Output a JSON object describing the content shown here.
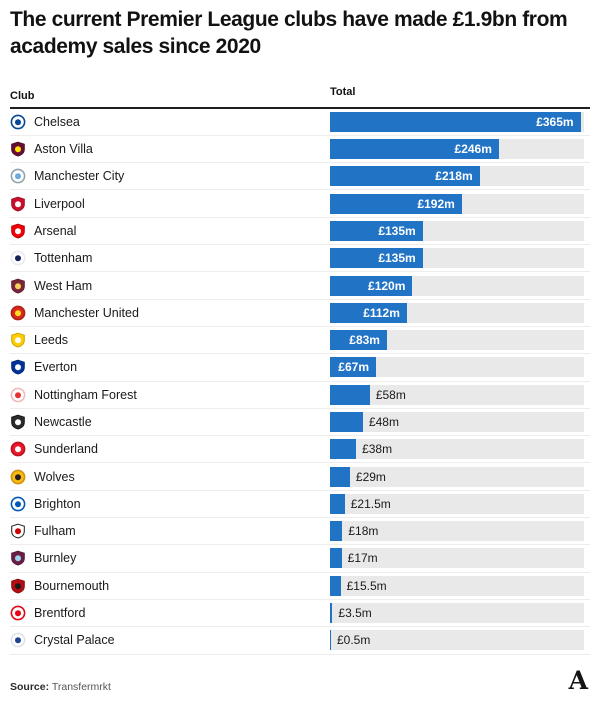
{
  "title": "The current Premier League clubs have made £1.9bn from academy sales since 2020",
  "columns": {
    "club": "Club",
    "total": "Total"
  },
  "source": {
    "label": "Source:",
    "value": "Transfermrkt"
  },
  "logo_letter": "A",
  "colors": {
    "bar": "#2173c6",
    "track": "#e9e9ea",
    "header_rule": "#1f1f1f",
    "row_separator": "#ededed",
    "value_inside": "#ffffff",
    "value_outside": "#1a1a1a"
  },
  "chart_data": {
    "type": "bar",
    "orientation": "horizontal",
    "title": "The current Premier League clubs have made £1.9bn from academy sales since 2020",
    "categories": [
      "Chelsea",
      "Aston Villa",
      "Manchester City",
      "Liverpool",
      "Arsenal",
      "Tottenham",
      "West Ham",
      "Manchester United",
      "Leeds",
      "Everton",
      "Nottingham Forest",
      "Newcastle",
      "Sunderland",
      "Wolves",
      "Brighton",
      "Fulham",
      "Burnley",
      "Bournemouth",
      "Brentford",
      "Crystal Palace"
    ],
    "values": [
      365,
      246,
      218,
      192,
      135,
      135,
      120,
      112,
      83,
      67,
      58,
      48,
      38,
      29,
      21.5,
      18,
      17,
      15.5,
      3.5,
      0.5
    ],
    "value_labels": [
      "£365m",
      "£246m",
      "£218m",
      "£192m",
      "£135m",
      "£135m",
      "£120m",
      "£112m",
      "£83m",
      "£67m",
      "£58m",
      "£48m",
      "£38m",
      "£29m",
      "£21.5m",
      "£18m",
      "£17m",
      "£15.5m",
      "£3.5m",
      "£0.5m"
    ],
    "unit": "£m",
    "xlabel": "Total",
    "ylabel": "Club",
    "xlim": [
      0,
      370
    ],
    "grid": false,
    "legend_position": "none",
    "source": "Transfermrkt"
  },
  "rows": [
    {
      "club": "Chelsea",
      "value": 365,
      "label": "£365m",
      "badge": {
        "shape": "circle",
        "bg": "#ffffff",
        "ring": "#034694",
        "accent": "#034694"
      }
    },
    {
      "club": "Aston Villa",
      "value": 246,
      "label": "£246m",
      "badge": {
        "shape": "shield",
        "bg": "#670e36",
        "ring": "#4f0a2a",
        "accent": "#ffe600"
      }
    },
    {
      "club": "Manchester City",
      "value": 218,
      "label": "£218m",
      "badge": {
        "shape": "circle",
        "bg": "#ffffff",
        "ring": "#8fa3ac",
        "accent": "#6cabdd"
      }
    },
    {
      "club": "Liverpool",
      "value": 192,
      "label": "£192m",
      "badge": {
        "shape": "shield",
        "bg": "#c8102e",
        "ring": "#9f0c24",
        "accent": "#ffffff"
      }
    },
    {
      "club": "Arsenal",
      "value": 135,
      "label": "£135m",
      "badge": {
        "shape": "shield",
        "bg": "#ef0107",
        "ring": "#bf0105",
        "accent": "#ffffff"
      }
    },
    {
      "club": "Tottenham",
      "value": 135,
      "label": "£135m",
      "badge": {
        "shape": "circle",
        "bg": "#ffffff",
        "ring": "#e7eaee",
        "accent": "#132257"
      }
    },
    {
      "club": "West Ham",
      "value": 120,
      "label": "£120m",
      "badge": {
        "shape": "shield",
        "bg": "#7a263a",
        "ring": "#611d2e",
        "accent": "#f3d459"
      }
    },
    {
      "club": "Manchester United",
      "value": 112,
      "label": "£112m",
      "badge": {
        "shape": "circle",
        "bg": "#da291c",
        "ring": "#ae2116",
        "accent": "#fbe122"
      }
    },
    {
      "club": "Leeds",
      "value": 83,
      "label": "£83m",
      "badge": {
        "shape": "shield",
        "bg": "#ffcd00",
        "ring": "#cca400",
        "accent": "#ffffff"
      }
    },
    {
      "club": "Everton",
      "value": 67,
      "label": "£67m",
      "badge": {
        "shape": "shield",
        "bg": "#003399",
        "ring": "#00297a",
        "accent": "#ffffff"
      }
    },
    {
      "club": "Nottingham Forest",
      "value": 58,
      "label": "£58m",
      "badge": {
        "shape": "circle",
        "bg": "#ffffff",
        "ring": "#f0b9ba",
        "accent": "#e53233"
      }
    },
    {
      "club": "Newcastle",
      "value": 48,
      "label": "£48m",
      "badge": {
        "shape": "shield",
        "bg": "#2b2b2b",
        "ring": "#141414",
        "accent": "#ffffff"
      }
    },
    {
      "club": "Sunderland",
      "value": 38,
      "label": "£38m",
      "badge": {
        "shape": "circle",
        "bg": "#eb172b",
        "ring": "#bb1222",
        "accent": "#ffffff"
      }
    },
    {
      "club": "Wolves",
      "value": 29,
      "label": "£29m",
      "badge": {
        "shape": "circle",
        "bg": "#fdb913",
        "ring": "#ca940f",
        "accent": "#231f20"
      }
    },
    {
      "club": "Brighton",
      "value": 21.5,
      "label": "£21.5m",
      "badge": {
        "shape": "circle",
        "bg": "#ffffff",
        "ring": "#0057b8",
        "accent": "#0057b8"
      }
    },
    {
      "club": "Fulham",
      "value": 18,
      "label": "£18m",
      "badge": {
        "shape": "shield",
        "bg": "#ffffff",
        "ring": "#1b1b1b",
        "accent": "#cc0000"
      }
    },
    {
      "club": "Burnley",
      "value": 17,
      "label": "£17m",
      "badge": {
        "shape": "shield",
        "bg": "#6c1d45",
        "ring": "#561737",
        "accent": "#99d6ea"
      }
    },
    {
      "club": "Bournemouth",
      "value": 15.5,
      "label": "£15.5m",
      "badge": {
        "shape": "shield",
        "bg": "#b50e12",
        "ring": "#8f0b0e",
        "accent": "#1a1a1a"
      }
    },
    {
      "club": "Brentford",
      "value": 3.5,
      "label": "£3.5m",
      "badge": {
        "shape": "circle",
        "bg": "#ffffff",
        "ring": "#e30613",
        "accent": "#e30613"
      }
    },
    {
      "club": "Crystal Palace",
      "value": 0.5,
      "label": "£0.5m",
      "badge": {
        "shape": "circle",
        "bg": "#ffffff",
        "ring": "#dfe3e8",
        "accent": "#1b458f"
      }
    }
  ]
}
